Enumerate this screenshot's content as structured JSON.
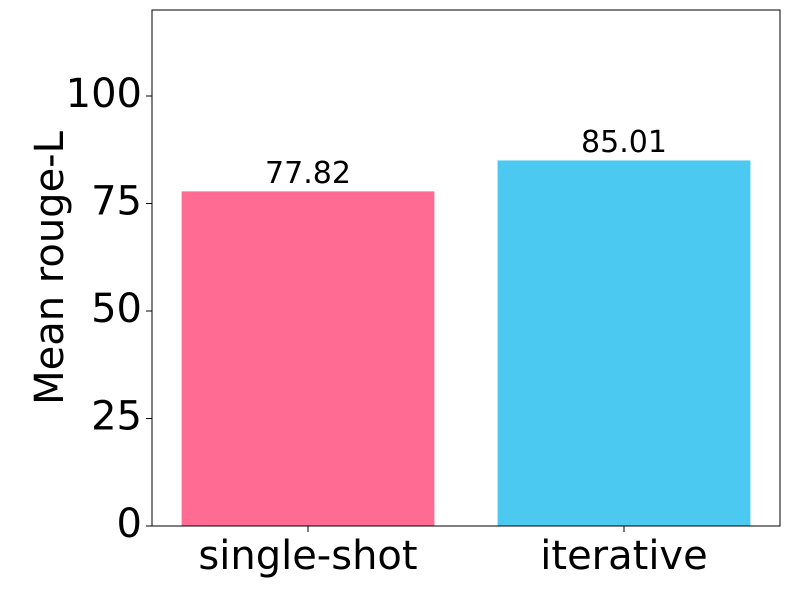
{
  "chart_data": {
    "type": "bar",
    "y_label": "Mean rouge-L",
    "categories": [
      "single-shot",
      "iterative"
    ],
    "values": [
      77.82,
      85.01
    ],
    "colors": [
      "#ff6b93",
      "#4cc9f0"
    ],
    "ylim": [
      0,
      120
    ],
    "yticks": [
      0,
      25,
      50,
      75,
      100
    ]
  }
}
